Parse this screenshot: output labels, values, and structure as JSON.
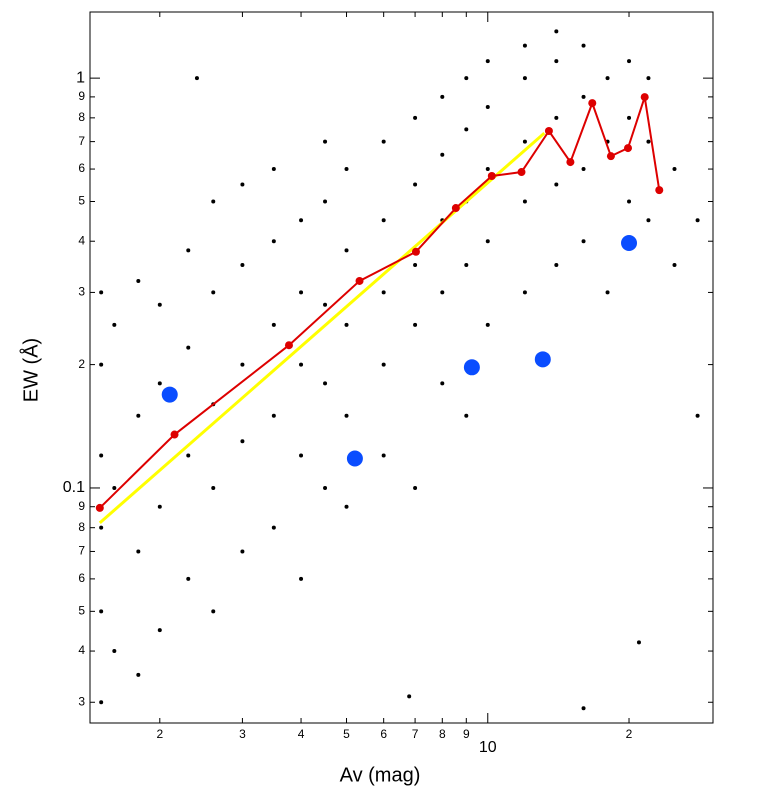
{
  "chart_data": {
    "type": "scatter",
    "xlabel": "Av (mag)",
    "ylabel": "EW (Å)",
    "log_x": true,
    "log_y": true,
    "xlim": [
      1.42,
      30.2
    ],
    "ylim": [
      0.0267,
      1.45
    ],
    "xticks": [
      2,
      3,
      4,
      5,
      6,
      7,
      8,
      9,
      10,
      {
        "value": 20,
        "label": "2"
      }
    ],
    "yticks": [
      {
        "value": 0.03,
        "label": "3"
      },
      {
        "value": 0.04,
        "label": "4"
      },
      {
        "value": 0.05,
        "label": "5"
      },
      {
        "value": 0.06,
        "label": "6"
      },
      {
        "value": 0.07,
        "label": "7"
      },
      {
        "value": 0.08,
        "label": "8"
      },
      {
        "value": 0.09,
        "label": "9"
      },
      0.1,
      {
        "value": 0.2,
        "label": "2"
      },
      {
        "value": 0.3,
        "label": "3"
      },
      {
        "value": 0.4,
        "label": "4"
      },
      {
        "value": 0.5,
        "label": "5"
      },
      {
        "value": 0.6,
        "label": "6"
      },
      {
        "value": 0.7,
        "label": "7"
      },
      {
        "value": 0.8,
        "label": "8"
      },
      {
        "value": 0.9,
        "label": "9"
      },
      1
    ],
    "series": [
      {
        "type": "scatter",
        "color": "#000000",
        "size": 2,
        "x": [
          1.5,
          1.5,
          1.5,
          1.5,
          1.5,
          1.5,
          1.6,
          1.6,
          1.6,
          1.8,
          1.8,
          1.8,
          1.8,
          2.0,
          2.0,
          2.0,
          2.0,
          2.3,
          2.3,
          2.3,
          2.3,
          2.6,
          2.6,
          2.6,
          2.6,
          2.6,
          3.0,
          3.0,
          3.0,
          3.0,
          3.0,
          3.5,
          3.5,
          3.5,
          3.5,
          3.5,
          4.0,
          4.0,
          4.0,
          4.0,
          4.0,
          4.5,
          4.5,
          4.5,
          4.5,
          4.5,
          5.0,
          5.0,
          5.0,
          5.0,
          5.0,
          6.0,
          6.0,
          6.0,
          6.0,
          6.0,
          7.0,
          7.0,
          7.0,
          7.0,
          7.0,
          8.0,
          8.0,
          8.0,
          8.0,
          8.0,
          9.0,
          9.0,
          9.0,
          9.0,
          9.0,
          10,
          10,
          10,
          10,
          10,
          12,
          12,
          12,
          12,
          12,
          14,
          14,
          14,
          14,
          14,
          16,
          16,
          16,
          16,
          18,
          18,
          18,
          20,
          20,
          20,
          22,
          22,
          22,
          25,
          25,
          28,
          28,
          2.4,
          6.8,
          16,
          21
        ],
        "values": [
          0.03,
          0.05,
          0.08,
          0.12,
          0.2,
          0.3,
          0.04,
          0.1,
          0.25,
          0.035,
          0.07,
          0.15,
          0.32,
          0.045,
          0.09,
          0.18,
          0.28,
          0.06,
          0.12,
          0.22,
          0.38,
          0.05,
          0.1,
          0.16,
          0.3,
          0.5,
          0.07,
          0.13,
          0.2,
          0.35,
          0.55,
          0.08,
          0.15,
          0.25,
          0.4,
          0.6,
          0.06,
          0.12,
          0.2,
          0.3,
          0.45,
          0.1,
          0.18,
          0.28,
          0.5,
          0.7,
          0.09,
          0.15,
          0.25,
          0.38,
          0.6,
          0.12,
          0.2,
          0.3,
          0.45,
          0.7,
          0.1,
          0.25,
          0.35,
          0.55,
          0.8,
          0.18,
          0.3,
          0.45,
          0.65,
          0.9,
          0.15,
          0.35,
          0.5,
          0.75,
          1.0,
          0.25,
          0.4,
          0.6,
          0.85,
          1.1,
          0.3,
          0.5,
          0.7,
          1.0,
          1.2,
          0.35,
          0.55,
          0.8,
          1.1,
          1.3,
          0.4,
          0.6,
          0.9,
          1.2,
          0.3,
          0.7,
          1.0,
          0.5,
          0.8,
          1.1,
          0.45,
          0.7,
          1.0,
          0.35,
          0.6,
          0.15,
          0.45,
          1.0,
          0.031,
          0.029,
          0.042
        ]
      },
      {
        "type": "scatter",
        "color": "#0a4dff",
        "size": 8,
        "x": [
          2.1,
          5.21,
          9.25,
          13.1,
          20.0
        ],
        "values": [
          0.169,
          0.118,
          0.197,
          0.206,
          0.396
        ]
      },
      {
        "type": "line",
        "color": "#ffff00",
        "width": 3,
        "x": [
          1.49,
          13.2
        ],
        "values": [
          0.0822,
          0.734
        ]
      },
      {
        "type": "line",
        "color": "#dd0000",
        "width": 2,
        "dots": true,
        "x": [
          1.49,
          2.15,
          3.77,
          5.33,
          7.03,
          8.55,
          10.2,
          11.8,
          13.5,
          15.0,
          16.7,
          18.3,
          19.9,
          21.6,
          23.2
        ],
        "values": [
          0.0894,
          0.135,
          0.223,
          0.32,
          0.377,
          0.482,
          0.577,
          0.59,
          0.743,
          0.624,
          0.869,
          0.645,
          0.675,
          0.899,
          0.533
        ]
      }
    ]
  }
}
